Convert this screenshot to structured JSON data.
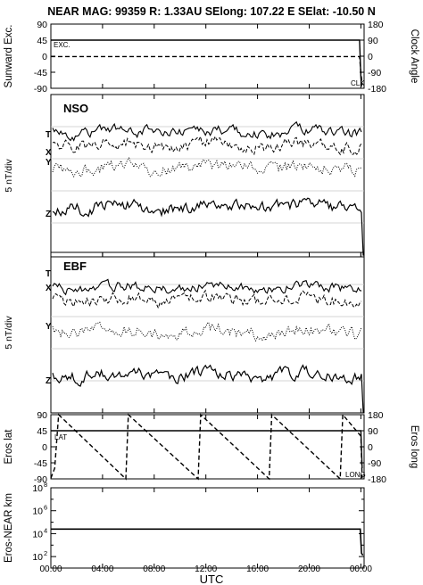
{
  "header": {
    "title": "NEAR MAG: 99359  R: 1.33AU  SElong: 107.22 E  SElat:  -10.50 N"
  },
  "chart_data": [
    {
      "id": "panel-sunward",
      "type": "line",
      "ylabel_left": "Sunward Exc.",
      "ylabel_right": "Clock Angle",
      "yticks_left": [
        "90",
        "45",
        "0",
        "-45",
        "-90"
      ],
      "yticks_right": [
        "180",
        "90",
        "0",
        "-90",
        "-180"
      ],
      "ylim": [
        -90,
        90
      ],
      "series": [
        {
          "name": "EXC.",
          "style": "solid",
          "points": [
            [
              0,
              45
            ],
            [
              23.9,
              45
            ],
            [
              24.0,
              -60
            ],
            [
              24.05,
              -85
            ]
          ]
        },
        {
          "name": "CLK",
          "style": "dashed",
          "points": [
            [
              0,
              -1
            ],
            [
              23.9,
              -1
            ],
            [
              24.0,
              -45
            ],
            [
              24.1,
              -80
            ]
          ]
        }
      ]
    },
    {
      "id": "panel-nso",
      "type": "line",
      "title": "NSO",
      "ylabel": "5 nT/div",
      "series_labels": [
        "T",
        "X",
        "Y",
        "Z"
      ]
    },
    {
      "id": "panel-ebf",
      "type": "line",
      "title": "EBF",
      "ylabel": "5 nT/div",
      "series_labels": [
        "T",
        "X",
        "Y",
        "Z"
      ]
    },
    {
      "id": "panel-eros",
      "type": "line",
      "ylabel_left": "Eros lat",
      "ylabel_right": "Eros long",
      "yticks_left": [
        "90",
        "45",
        "0",
        "-45",
        "-90"
      ],
      "yticks_right": [
        "180",
        "90",
        "0",
        "-90",
        "-180"
      ],
      "ylim": [
        -90,
        90
      ],
      "series": [
        {
          "name": "LAT",
          "style": "solid",
          "points": [
            [
              0,
              45
            ],
            [
              24.0,
              45
            ],
            [
              24.1,
              -60
            ]
          ]
        },
        {
          "name": "LONG",
          "style": "dashed",
          "points": [
            [
              0,
              -88
            ],
            [
              0.3,
              -60
            ],
            [
              0.6,
              90
            ],
            [
              5.8,
              -90
            ],
            [
              6.0,
              90
            ],
            [
              11.4,
              -90
            ],
            [
              11.6,
              90
            ],
            [
              16.9,
              -90
            ],
            [
              17.1,
              90
            ],
            [
              22.4,
              -90
            ],
            [
              22.6,
              90
            ],
            [
              24.0,
              30
            ],
            [
              24.1,
              -88
            ]
          ]
        }
      ]
    },
    {
      "id": "panel-distance",
      "type": "line",
      "ylabel": "Eros-NEAR km",
      "yscale": "log",
      "ylim": [
        10,
        100000000
      ],
      "yticks": [
        {
          "base": "10",
          "exp": "8",
          "value": 100000000
        },
        {
          "base": "10",
          "exp": "6",
          "value": 1000000
        },
        {
          "base": "10",
          "exp": "4",
          "value": 10000
        },
        {
          "base": "10",
          "exp": "2",
          "value": 100
        }
      ],
      "series": [
        {
          "name": "",
          "style": "solid",
          "points": [
            [
              0,
              25000
            ],
            [
              23.95,
              25000
            ],
            [
              24.05,
              200
            ],
            [
              24.15,
              130
            ]
          ]
        }
      ]
    }
  ],
  "xaxis": {
    "label": "UTC",
    "ticks": [
      {
        "value": 0,
        "label": "00:00"
      },
      {
        "value": 4,
        "label": "04:00"
      },
      {
        "value": 8,
        "label": "08:00"
      },
      {
        "value": 12,
        "label": "12:00"
      },
      {
        "value": 16,
        "label": "16:00"
      },
      {
        "value": 20,
        "label": "20:00"
      },
      {
        "value": 24,
        "label": "00:00"
      }
    ],
    "range": [
      0,
      24.25
    ]
  }
}
